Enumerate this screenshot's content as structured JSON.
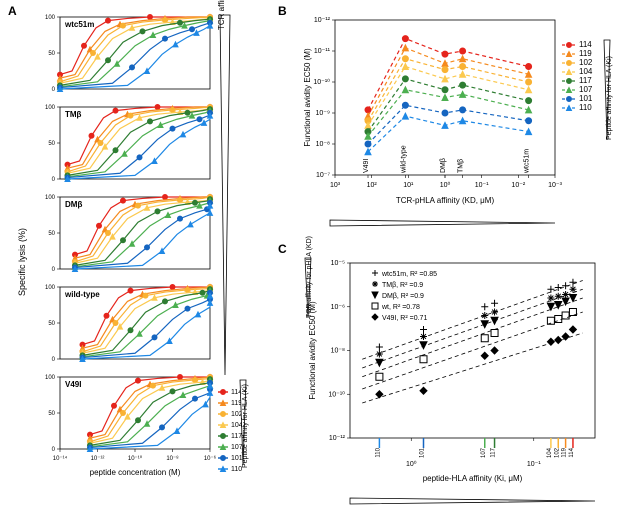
{
  "panelA": {
    "label": "A",
    "ylabel": "Specific lysis (%)",
    "xlabel": "peptide concentration (M)",
    "side_label": "TCR affinity for pHLA (KD)",
    "peptide_side_label": "Peptide affinity for HLA (Ki)",
    "subplots": [
      "wtc51m",
      "TMβ",
      "DMβ",
      "wild-type",
      "V49I"
    ],
    "xticks": [
      "10⁻¹⁴",
      "10⁻¹²",
      "10⁻¹⁰",
      "10⁻⁸",
      "10⁻⁶"
    ],
    "yticks": [
      "0",
      "50",
      "100"
    ],
    "series": [
      {
        "id": "114",
        "color": "#e5241c",
        "marker": "circle"
      },
      {
        "id": "119",
        "color": "#f58a1f",
        "marker": "triangle"
      },
      {
        "id": "102",
        "color": "#f9b233",
        "marker": "circle"
      },
      {
        "id": "104",
        "color": "#fbc94f",
        "marker": "triangle"
      },
      {
        "id": "117",
        "color": "#2e7d32",
        "marker": "circle"
      },
      {
        "id": "107",
        "color": "#4caf50",
        "marker": "triangle"
      },
      {
        "id": "101",
        "color": "#1565c0",
        "marker": "circle"
      },
      {
        "id": "110",
        "color": "#1e88e5",
        "marker": "triangle"
      }
    ],
    "curves": {
      "wtc51m": {
        "114": [
          [
            0,
            20
          ],
          [
            0.08,
            25
          ],
          [
            0.16,
            60
          ],
          [
            0.24,
            85
          ],
          [
            0.32,
            95
          ],
          [
            0.45,
            98
          ],
          [
            0.6,
            100
          ],
          [
            0.8,
            100
          ],
          [
            1,
            100
          ]
        ],
        "119": [
          [
            0,
            15
          ],
          [
            0.1,
            20
          ],
          [
            0.2,
            55
          ],
          [
            0.3,
            80
          ],
          [
            0.4,
            90
          ],
          [
            0.55,
            95
          ],
          [
            0.7,
            98
          ],
          [
            0.85,
            100
          ],
          [
            1,
            100
          ]
        ],
        "102": [
          [
            0,
            10
          ],
          [
            0.12,
            18
          ],
          [
            0.22,
            50
          ],
          [
            0.32,
            75
          ],
          [
            0.42,
            88
          ],
          [
            0.55,
            93
          ],
          [
            0.7,
            96
          ],
          [
            0.85,
            98
          ],
          [
            1,
            100
          ]
        ],
        "104": [
          [
            0,
            8
          ],
          [
            0.15,
            15
          ],
          [
            0.25,
            45
          ],
          [
            0.35,
            70
          ],
          [
            0.48,
            85
          ],
          [
            0.6,
            90
          ],
          [
            0.75,
            93
          ],
          [
            0.88,
            95
          ],
          [
            1,
            98
          ]
        ],
        "117": [
          [
            0,
            5
          ],
          [
            0.2,
            12
          ],
          [
            0.32,
            40
          ],
          [
            0.42,
            65
          ],
          [
            0.55,
            80
          ],
          [
            0.68,
            88
          ],
          [
            0.8,
            92
          ],
          [
            0.9,
            95
          ],
          [
            1,
            97
          ]
        ],
        "107": [
          [
            0,
            3
          ],
          [
            0.25,
            10
          ],
          [
            0.38,
            35
          ],
          [
            0.5,
            60
          ],
          [
            0.62,
            75
          ],
          [
            0.73,
            83
          ],
          [
            0.83,
            88
          ],
          [
            0.92,
            92
          ],
          [
            1,
            95
          ]
        ],
        "101": [
          [
            0,
            2
          ],
          [
            0.35,
            8
          ],
          [
            0.48,
            30
          ],
          [
            0.6,
            55
          ],
          [
            0.7,
            70
          ],
          [
            0.8,
            78
          ],
          [
            0.88,
            83
          ],
          [
            0.94,
            88
          ],
          [
            1,
            92
          ]
        ],
        "110": [
          [
            0,
            0
          ],
          [
            0.45,
            5
          ],
          [
            0.58,
            25
          ],
          [
            0.68,
            48
          ],
          [
            0.77,
            62
          ],
          [
            0.85,
            72
          ],
          [
            0.91,
            78
          ],
          [
            0.96,
            83
          ],
          [
            1,
            88
          ]
        ]
      }
    }
  },
  "panelB": {
    "label": "B",
    "ylabel": "Functional avidity EC50 (M)",
    "xlabel": "TCR-pHLA affinity (KD, μM)",
    "side_label": "Peptide affinity for HLA (Ki)",
    "xticks": [
      "10³",
      "10²",
      "10¹",
      "10⁰",
      "10⁻¹",
      "10⁻²",
      "10⁻³"
    ],
    "xcat_labels": [
      "V49I",
      "wild-type",
      "DMβ",
      "TMβ",
      "wtc51m"
    ],
    "xcat_pos": [
      0.15,
      0.32,
      0.5,
      0.58,
      0.88
    ],
    "yticks": [
      "10⁻¹²",
      "10⁻¹¹",
      "10⁻¹⁰",
      "10⁻⁹",
      "10⁻⁸",
      "10⁻⁷"
    ],
    "series": [
      {
        "id": "114",
        "color": "#e5241c",
        "marker": "circle",
        "data": [
          [
            0.15,
            0.42
          ],
          [
            0.32,
            0.88
          ],
          [
            0.5,
            0.78
          ],
          [
            0.58,
            0.8
          ],
          [
            0.88,
            0.7
          ]
        ]
      },
      {
        "id": "119",
        "color": "#f58a1f",
        "marker": "triangle",
        "data": [
          [
            0.15,
            0.38
          ],
          [
            0.32,
            0.82
          ],
          [
            0.5,
            0.72
          ],
          [
            0.58,
            0.75
          ],
          [
            0.88,
            0.65
          ]
        ]
      },
      {
        "id": "102",
        "color": "#f9b233",
        "marker": "circle",
        "data": [
          [
            0.15,
            0.35
          ],
          [
            0.32,
            0.75
          ],
          [
            0.5,
            0.68
          ],
          [
            0.58,
            0.7
          ],
          [
            0.88,
            0.6
          ]
        ]
      },
      {
        "id": "104",
        "color": "#fbc94f",
        "marker": "triangle",
        "data": [
          [
            0.15,
            0.32
          ],
          [
            0.32,
            0.7
          ],
          [
            0.5,
            0.62
          ],
          [
            0.58,
            0.65
          ],
          [
            0.88,
            0.55
          ]
        ]
      },
      {
        "id": "117",
        "color": "#2e7d32",
        "marker": "circle",
        "data": [
          [
            0.15,
            0.28
          ],
          [
            0.32,
            0.62
          ],
          [
            0.5,
            0.55
          ],
          [
            0.58,
            0.58
          ],
          [
            0.88,
            0.48
          ]
        ]
      },
      {
        "id": "107",
        "color": "#4caf50",
        "marker": "triangle",
        "data": [
          [
            0.15,
            0.25
          ],
          [
            0.32,
            0.55
          ],
          [
            0.5,
            0.5
          ],
          [
            0.58,
            0.52
          ],
          [
            0.88,
            0.42
          ]
        ]
      },
      {
        "id": "101",
        "color": "#1565c0",
        "marker": "circle",
        "data": [
          [
            0.15,
            0.2
          ],
          [
            0.32,
            0.45
          ],
          [
            0.5,
            0.4
          ],
          [
            0.58,
            0.42
          ],
          [
            0.88,
            0.35
          ]
        ]
      },
      {
        "id": "110",
        "color": "#1e88e5",
        "marker": "triangle",
        "data": [
          [
            0.15,
            0.15
          ],
          [
            0.32,
            0.38
          ],
          [
            0.5,
            0.32
          ],
          [
            0.58,
            0.35
          ],
          [
            0.88,
            0.28
          ]
        ]
      }
    ]
  },
  "panelC": {
    "label": "C",
    "ylabel": "Functional avidity EC50 (M)",
    "xlabel": "peptide-HLA affinity (Ki, μM)",
    "side_label": "TCR affinity for pHLA (KD)",
    "xticks": [
      "10⁰",
      "10⁻¹"
    ],
    "yticks": [
      "10⁻¹²",
      "10⁻¹⁰",
      "10⁻⁸",
      "10⁻⁶",
      "10⁻⁵"
    ],
    "series": [
      {
        "id": "wtc51m",
        "r2": "0.85",
        "marker": "plus",
        "slope": [
          [
            0.05,
            0.45
          ],
          [
            0.95,
            0.9
          ]
        ]
      },
      {
        "id": "TMβ",
        "r2": "0.9",
        "marker": "star",
        "slope": [
          [
            0.05,
            0.4
          ],
          [
            0.95,
            0.85
          ]
        ]
      },
      {
        "id": "DMβ",
        "r2": "0.9",
        "marker": "tri-down",
        "slope": [
          [
            0.05,
            0.35
          ],
          [
            0.95,
            0.8
          ]
        ]
      },
      {
        "id": "wt",
        "r2": "0.78",
        "marker": "square",
        "slope": [
          [
            0.05,
            0.28
          ],
          [
            0.95,
            0.72
          ]
        ]
      },
      {
        "id": "V49I",
        "r2": "0.71",
        "marker": "diamond",
        "slope": [
          [
            0.05,
            0.2
          ],
          [
            0.95,
            0.6
          ]
        ]
      }
    ],
    "xaxis_markers": [
      {
        "id": "110",
        "color": "#1e88e5",
        "pos": 0.12
      },
      {
        "id": "101",
        "color": "#1565c0",
        "pos": 0.3
      },
      {
        "id": "107",
        "color": "#4caf50",
        "pos": 0.55
      },
      {
        "id": "117",
        "color": "#2e7d32",
        "pos": 0.59
      },
      {
        "id": "104",
        "color": "#fbc94f",
        "pos": 0.82
      },
      {
        "id": "102",
        "color": "#f9b233",
        "pos": 0.85
      },
      {
        "id": "119",
        "color": "#f58a1f",
        "pos": 0.88
      },
      {
        "id": "114",
        "color": "#e5241c",
        "pos": 0.91
      }
    ],
    "scatter": {
      "plus": [
        [
          0.12,
          0.52
        ],
        [
          0.3,
          0.62
        ],
        [
          0.55,
          0.75
        ],
        [
          0.59,
          0.77
        ],
        [
          0.82,
          0.85
        ],
        [
          0.85,
          0.86
        ],
        [
          0.88,
          0.87
        ],
        [
          0.91,
          0.89
        ]
      ],
      "star": [
        [
          0.12,
          0.48
        ],
        [
          0.3,
          0.58
        ],
        [
          0.55,
          0.7
        ],
        [
          0.59,
          0.72
        ],
        [
          0.82,
          0.8
        ],
        [
          0.85,
          0.81
        ],
        [
          0.88,
          0.82
        ],
        [
          0.91,
          0.85
        ]
      ],
      "tri-down": [
        [
          0.12,
          0.43
        ],
        [
          0.3,
          0.53
        ],
        [
          0.55,
          0.65
        ],
        [
          0.59,
          0.67
        ],
        [
          0.82,
          0.75
        ],
        [
          0.85,
          0.76
        ],
        [
          0.88,
          0.78
        ],
        [
          0.91,
          0.8
        ]
      ],
      "square": [
        [
          0.12,
          0.35
        ],
        [
          0.3,
          0.45
        ],
        [
          0.55,
          0.57
        ],
        [
          0.59,
          0.6
        ],
        [
          0.82,
          0.67
        ],
        [
          0.85,
          0.68
        ],
        [
          0.88,
          0.7
        ],
        [
          0.91,
          0.72
        ]
      ],
      "diamond": [
        [
          0.12,
          0.25
        ],
        [
          0.3,
          0.27
        ],
        [
          0.55,
          0.47
        ],
        [
          0.59,
          0.5
        ],
        [
          0.82,
          0.55
        ],
        [
          0.85,
          0.56
        ],
        [
          0.88,
          0.58
        ],
        [
          0.91,
          0.62
        ]
      ]
    }
  },
  "colors": {
    "axis": "#000000",
    "text": "#000000",
    "triangle_fill": "#ffffff",
    "triangle_stroke": "#000000"
  }
}
